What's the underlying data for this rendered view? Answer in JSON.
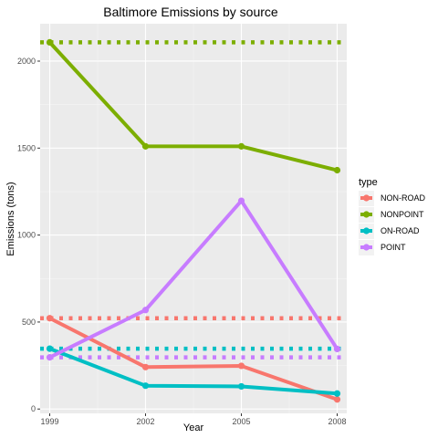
{
  "chart_data": {
    "type": "line",
    "title": "Baltimore Emissions by source",
    "xlabel": "Year",
    "ylabel": "Emissions (tons)",
    "x": [
      1999,
      2002,
      2005,
      2008
    ],
    "xlim": [
      1998.7,
      2008.3
    ],
    "ylim": [
      -25,
      2215
    ],
    "yticks": [
      0,
      500,
      1000,
      1500,
      2000
    ],
    "grid": true,
    "legend": {
      "title": "type",
      "position": "right"
    },
    "series": [
      {
        "name": "NON-ROAD",
        "color": "#F8766D",
        "values": [
          522,
          241,
          248,
          55
        ],
        "reference": 522
      },
      {
        "name": "NONPOINT",
        "color": "#7CAE00",
        "values": [
          2108,
          1510,
          1510,
          1373
        ],
        "reference": 2108
      },
      {
        "name": "ON-ROAD",
        "color": "#00BFC4",
        "values": [
          347,
          134,
          130,
          89
        ],
        "reference": 347
      },
      {
        "name": "POINT",
        "color": "#C77CFF",
        "values": [
          297,
          569,
          1197,
          345
        ],
        "reference": 297
      }
    ]
  }
}
